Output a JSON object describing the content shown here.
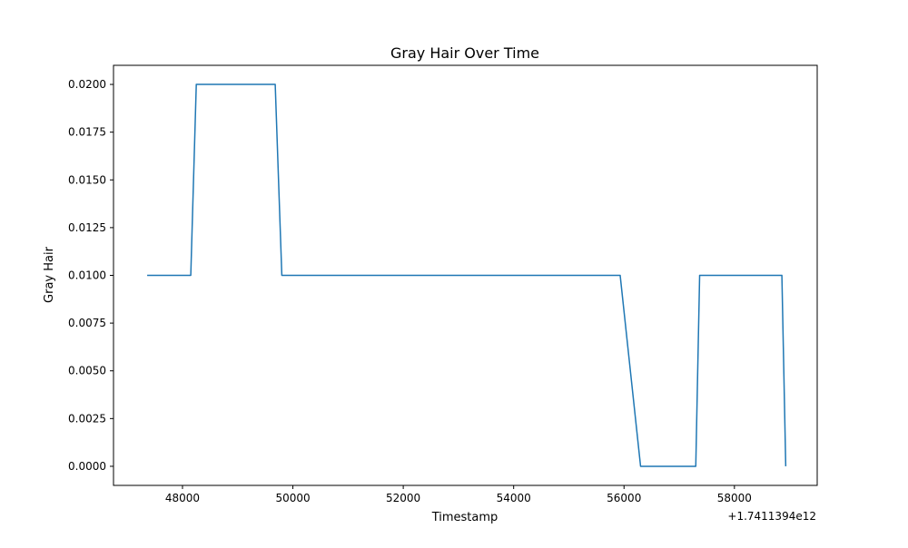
{
  "chart_data": {
    "type": "line",
    "title": "Gray Hair Over Time",
    "xlabel": "Timestamp",
    "ylabel": "Gray Hair",
    "x_offset_label": "+1.7411394e12",
    "x_tick_labels": [
      "48000",
      "50000",
      "52000",
      "54000",
      "56000",
      "58000"
    ],
    "y_tick_labels": [
      "0.0000",
      "0.0025",
      "0.0050",
      "0.0075",
      "0.0100",
      "0.0125",
      "0.0150",
      "0.0175",
      "0.0200"
    ],
    "xlim": [
      1741139446750,
      1741139459500
    ],
    "ylim": [
      -0.001,
      0.021
    ],
    "grid": false,
    "series": [
      {
        "color": "#1f77b4",
        "x": [
          1741139447360,
          1741139448150,
          1741139448250,
          1741139449680,
          1741139449800,
          1741139455930,
          1741139456300,
          1741139457300,
          1741139457370,
          1741139458860,
          1741139458930
        ],
        "y": [
          0.01,
          0.01,
          0.02,
          0.02,
          0.01,
          0.01,
          0.0,
          0.0,
          0.01,
          0.01,
          0.0
        ]
      }
    ]
  }
}
